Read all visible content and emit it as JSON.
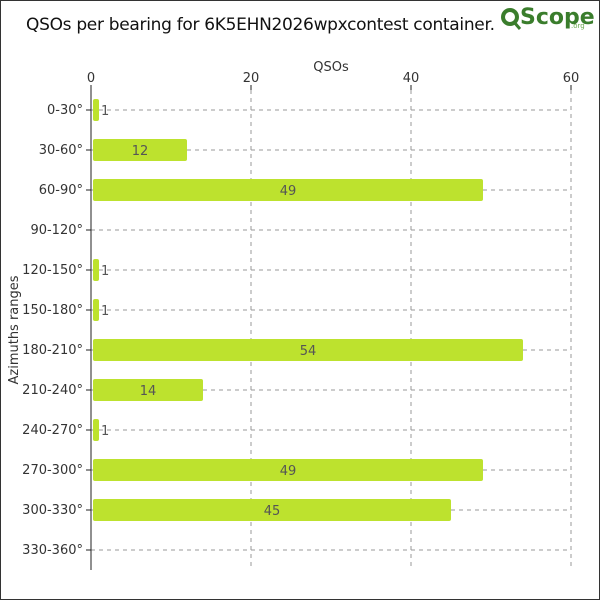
{
  "title": "QSOs per bearing for 6K5EHN2026wpxcontest container.",
  "logo": {
    "text": "Scope",
    "sub": ".org"
  },
  "colors": {
    "bar": "#bde22e",
    "grid": "#999999",
    "axis": "#222222",
    "text": "#333333"
  },
  "chart_data": {
    "type": "bar",
    "orientation": "horizontal",
    "title": "QSOs per bearing for 6K5EHN2026wpxcontest container.",
    "xlabel": "QSOs",
    "ylabel": "Azimuths ranges",
    "xlim": [
      0,
      60
    ],
    "xticks": [
      "0",
      "20",
      "40",
      "60"
    ],
    "grid": true,
    "categories": [
      "0-30°",
      "30-60°",
      "60-90°",
      "90-120°",
      "120-150°",
      "150-180°",
      "180-210°",
      "210-240°",
      "240-270°",
      "270-300°",
      "300-330°",
      "330-360°"
    ],
    "values": [
      1,
      12,
      49,
      0,
      1,
      1,
      54,
      14,
      1,
      49,
      45,
      0
    ],
    "data_labels": [
      "1",
      "12",
      "49",
      "",
      "1",
      "1",
      "54",
      "14",
      "1",
      "49",
      "45",
      ""
    ]
  }
}
